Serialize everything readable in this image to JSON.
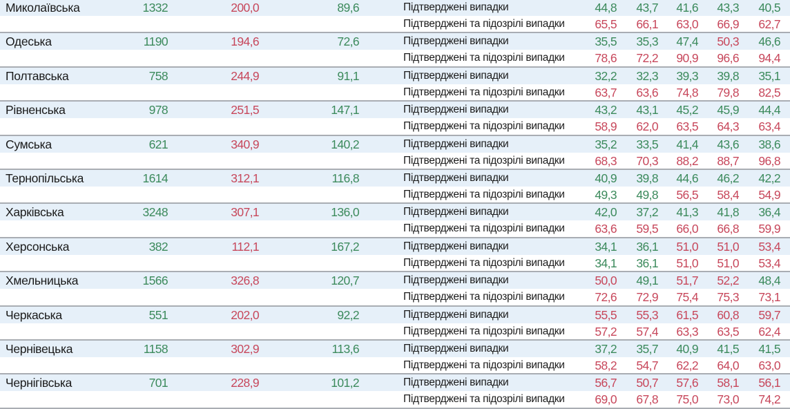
{
  "colors": {
    "green": "#3c8a5c",
    "red": "#c7475b",
    "row_band": "#e6f0f9"
  },
  "threshold_red_at_or_above": 50,
  "labels": {
    "confirmed": "Підтверджені випадки",
    "confirmed_suspected": "Підтверджені та підозрілі випадки"
  },
  "regions": [
    {
      "name": "Миколаївська",
      "c1": "1332",
      "c2": "200,0",
      "c3": "89,6",
      "confirmed": [
        "44,8",
        "43,7",
        "41,6",
        "43,3",
        "40,5"
      ],
      "confirmed_suspected": [
        "65,5",
        "66,1",
        "63,0",
        "66,9",
        "62,7"
      ]
    },
    {
      "name": "Одеська",
      "c1": "1190",
      "c2": "194,6",
      "c3": "72,6",
      "confirmed": [
        "35,5",
        "35,3",
        "47,4",
        "50,3",
        "46,6"
      ],
      "confirmed_suspected": [
        "78,6",
        "72,2",
        "90,9",
        "96,6",
        "94,4"
      ]
    },
    {
      "name": "Полтавська",
      "c1": "758",
      "c2": "244,9",
      "c3": "91,1",
      "confirmed": [
        "32,2",
        "32,3",
        "39,3",
        "39,8",
        "35,1"
      ],
      "confirmed_suspected": [
        "63,7",
        "63,6",
        "74,8",
        "79,8",
        "82,5"
      ]
    },
    {
      "name": "Рівненська",
      "c1": "978",
      "c2": "251,5",
      "c3": "147,1",
      "confirmed": [
        "43,2",
        "43,1",
        "45,2",
        "45,9",
        "44,4"
      ],
      "confirmed_suspected": [
        "58,9",
        "62,0",
        "63,5",
        "64,3",
        "63,4"
      ]
    },
    {
      "name": "Сумська",
      "c1": "621",
      "c2": "340,9",
      "c3": "140,2",
      "confirmed": [
        "35,2",
        "33,5",
        "41,4",
        "43,6",
        "38,6"
      ],
      "confirmed_suspected": [
        "68,3",
        "70,3",
        "88,2",
        "88,7",
        "96,8"
      ]
    },
    {
      "name": "Тернопільська",
      "c1": "1614",
      "c2": "312,1",
      "c3": "116,8",
      "confirmed": [
        "40,9",
        "39,8",
        "44,6",
        "46,2",
        "42,2"
      ],
      "confirmed_suspected": [
        "49,3",
        "49,8",
        "56,5",
        "58,4",
        "54,9"
      ]
    },
    {
      "name": "Харківська",
      "c1": "3248",
      "c2": "307,1",
      "c3": "136,0",
      "confirmed": [
        "42,0",
        "37,2",
        "41,3",
        "41,8",
        "36,4"
      ],
      "confirmed_suspected": [
        "63,6",
        "59,5",
        "66,0",
        "66,8",
        "59,9"
      ]
    },
    {
      "name": "Херсонська",
      "c1": "382",
      "c2": "112,1",
      "c3": "167,2",
      "confirmed": [
        "34,1",
        "36,1",
        "51,0",
        "51,0",
        "53,4"
      ],
      "confirmed_suspected": [
        "34,1",
        "36,1",
        "51,0",
        "51,0",
        "53,4"
      ]
    },
    {
      "name": "Хмельницька",
      "c1": "1566",
      "c2": "326,8",
      "c3": "120,7",
      "confirmed": [
        "50,0",
        "49,1",
        "51,7",
        "52,2",
        "48,4"
      ],
      "confirmed_suspected": [
        "72,6",
        "72,9",
        "75,4",
        "75,3",
        "73,1"
      ]
    },
    {
      "name": "Черкаська",
      "c1": "551",
      "c2": "202,0",
      "c3": "92,2",
      "confirmed": [
        "55,5",
        "55,3",
        "61,5",
        "60,8",
        "59,7"
      ],
      "confirmed_suspected": [
        "57,2",
        "57,4",
        "63,3",
        "63,5",
        "62,4"
      ]
    },
    {
      "name": "Чернівецька",
      "c1": "1158",
      "c2": "302,9",
      "c3": "113,6",
      "confirmed": [
        "37,2",
        "35,7",
        "40,9",
        "41,5",
        "41,5"
      ],
      "confirmed_suspected": [
        "58,2",
        "54,7",
        "62,2",
        "64,0",
        "63,0"
      ]
    },
    {
      "name": "Чернігівська",
      "c1": "701",
      "c2": "228,9",
      "c3": "101,2",
      "confirmed": [
        "56,7",
        "50,7",
        "57,6",
        "58,1",
        "56,1"
      ],
      "confirmed_suspected": [
        "69,0",
        "67,8",
        "75,0",
        "73,0",
        "74,2"
      ]
    }
  ]
}
